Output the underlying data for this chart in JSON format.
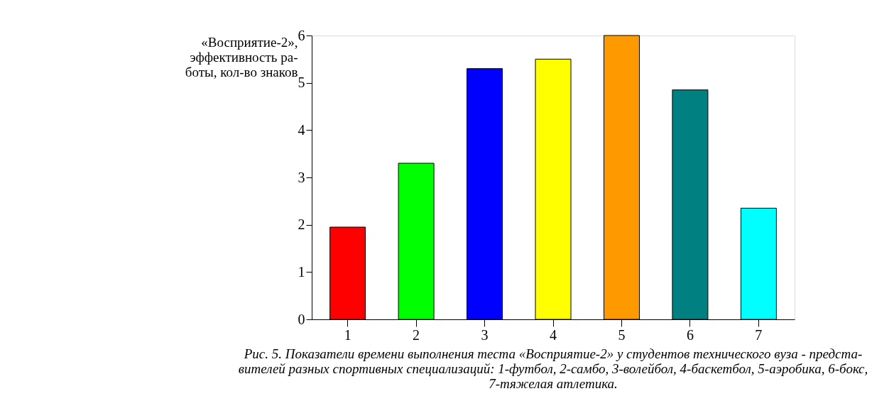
{
  "chart_data": {
    "type": "bar",
    "ylabel": "«Восприятие-2»,\nэффективность ра-\nботы, кол-во знаков",
    "categories": [
      "1",
      "2",
      "3",
      "4",
      "5",
      "6",
      "7"
    ],
    "values": [
      1.95,
      3.3,
      5.3,
      5.5,
      6.0,
      4.85,
      2.35
    ],
    "colors": [
      "#ff0000",
      "#00ff00",
      "#0000ff",
      "#ffff00",
      "#ff9900",
      "#008080",
      "#00ffff"
    ],
    "ylim": [
      0,
      6
    ],
    "yticks": [
      0,
      1,
      2,
      3,
      4,
      5,
      6
    ],
    "grid": false,
    "annotations": [
      "Рис. 5. Показатели времени выполнения теста «Восприятие-2» у студентов технического вуза - предста-\nвителей разных спортивных специализаций: 1-футбол, 2-самбо, 3-волейбол, 4-баскетбол, 5-аэробика, 6-бокс,\n7-тяжелая атлетика."
    ]
  }
}
